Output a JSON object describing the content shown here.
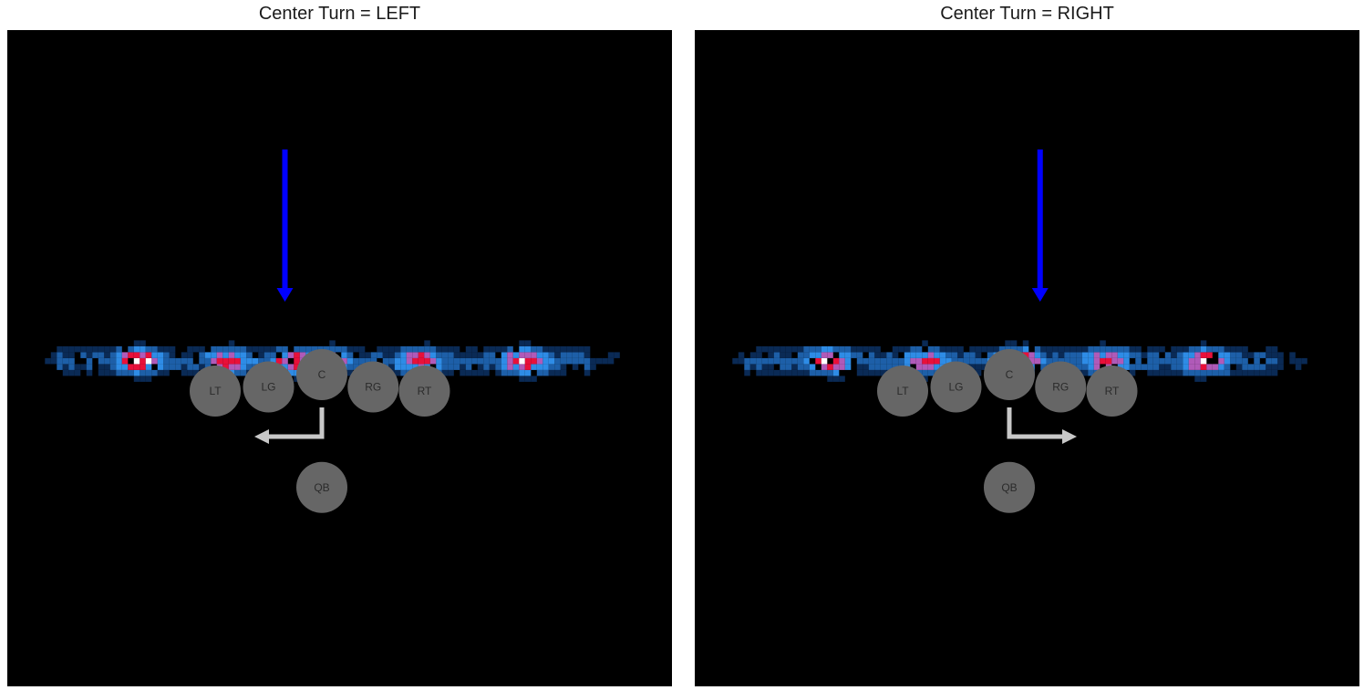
{
  "chart_data": [
    {
      "type": "heatmap",
      "title": "Center Turn = LEFT",
      "turn": "left",
      "background": "#000000",
      "colors": {
        "arrow": "#0000ff",
        "turn_arrow": "#c8c8c8",
        "player": "#666666",
        "heat_low": "#0a2a55",
        "heat_mid": "#2e8ce6",
        "heat_high": "#e8103a",
        "heat_peak": "#ffffff"
      },
      "arrow_target_x": -1.8,
      "players": [
        {
          "label": "LT",
          "x": -5.2,
          "y": -1.6
        },
        {
          "label": "LG",
          "x": -2.6,
          "y": -1.4
        },
        {
          "label": "C",
          "x": 0,
          "y": -0.8
        },
        {
          "label": "RG",
          "x": 2.5,
          "y": -1.4
        },
        {
          "label": "RT",
          "x": 5.0,
          "y": -1.6
        },
        {
          "label": "QB",
          "x": 0,
          "y": -6.3
        }
      ],
      "heat_clusters": [
        {
          "x": -9.0,
          "intensity": 1.0
        },
        {
          "x": -4.6,
          "intensity": 0.85
        },
        {
          "x": -1.5,
          "intensity": 0.9
        },
        {
          "x": 0.1,
          "intensity": 0.9
        },
        {
          "x": 4.6,
          "intensity": 0.85
        },
        {
          "x": 9.8,
          "intensity": 1.0
        }
      ]
    },
    {
      "type": "heatmap",
      "title": "Center Turn = RIGHT",
      "turn": "right",
      "background": "#000000",
      "colors": {
        "arrow": "#0000ff",
        "turn_arrow": "#c8c8c8",
        "player": "#666666",
        "heat_low": "#0a2a55",
        "heat_mid": "#2e8ce6",
        "heat_high": "#e8103a",
        "heat_peak": "#ffffff"
      },
      "arrow_target_x": 1.5,
      "players": [
        {
          "label": "LT",
          "x": -5.2,
          "y": -1.6
        },
        {
          "label": "LG",
          "x": -2.6,
          "y": -1.4
        },
        {
          "label": "C",
          "x": 0,
          "y": -0.8
        },
        {
          "label": "RG",
          "x": 2.5,
          "y": -1.4
        },
        {
          "label": "RT",
          "x": 5.0,
          "y": -1.6
        },
        {
          "label": "QB",
          "x": 0,
          "y": -6.3
        }
      ],
      "heat_clusters": [
        {
          "x": -9.0,
          "intensity": 1.0
        },
        {
          "x": -4.2,
          "intensity": 0.85
        },
        {
          "x": 0.2,
          "intensity": 1.0
        },
        {
          "x": 4.6,
          "intensity": 0.85
        },
        {
          "x": 9.4,
          "intensity": 0.9
        }
      ]
    }
  ]
}
